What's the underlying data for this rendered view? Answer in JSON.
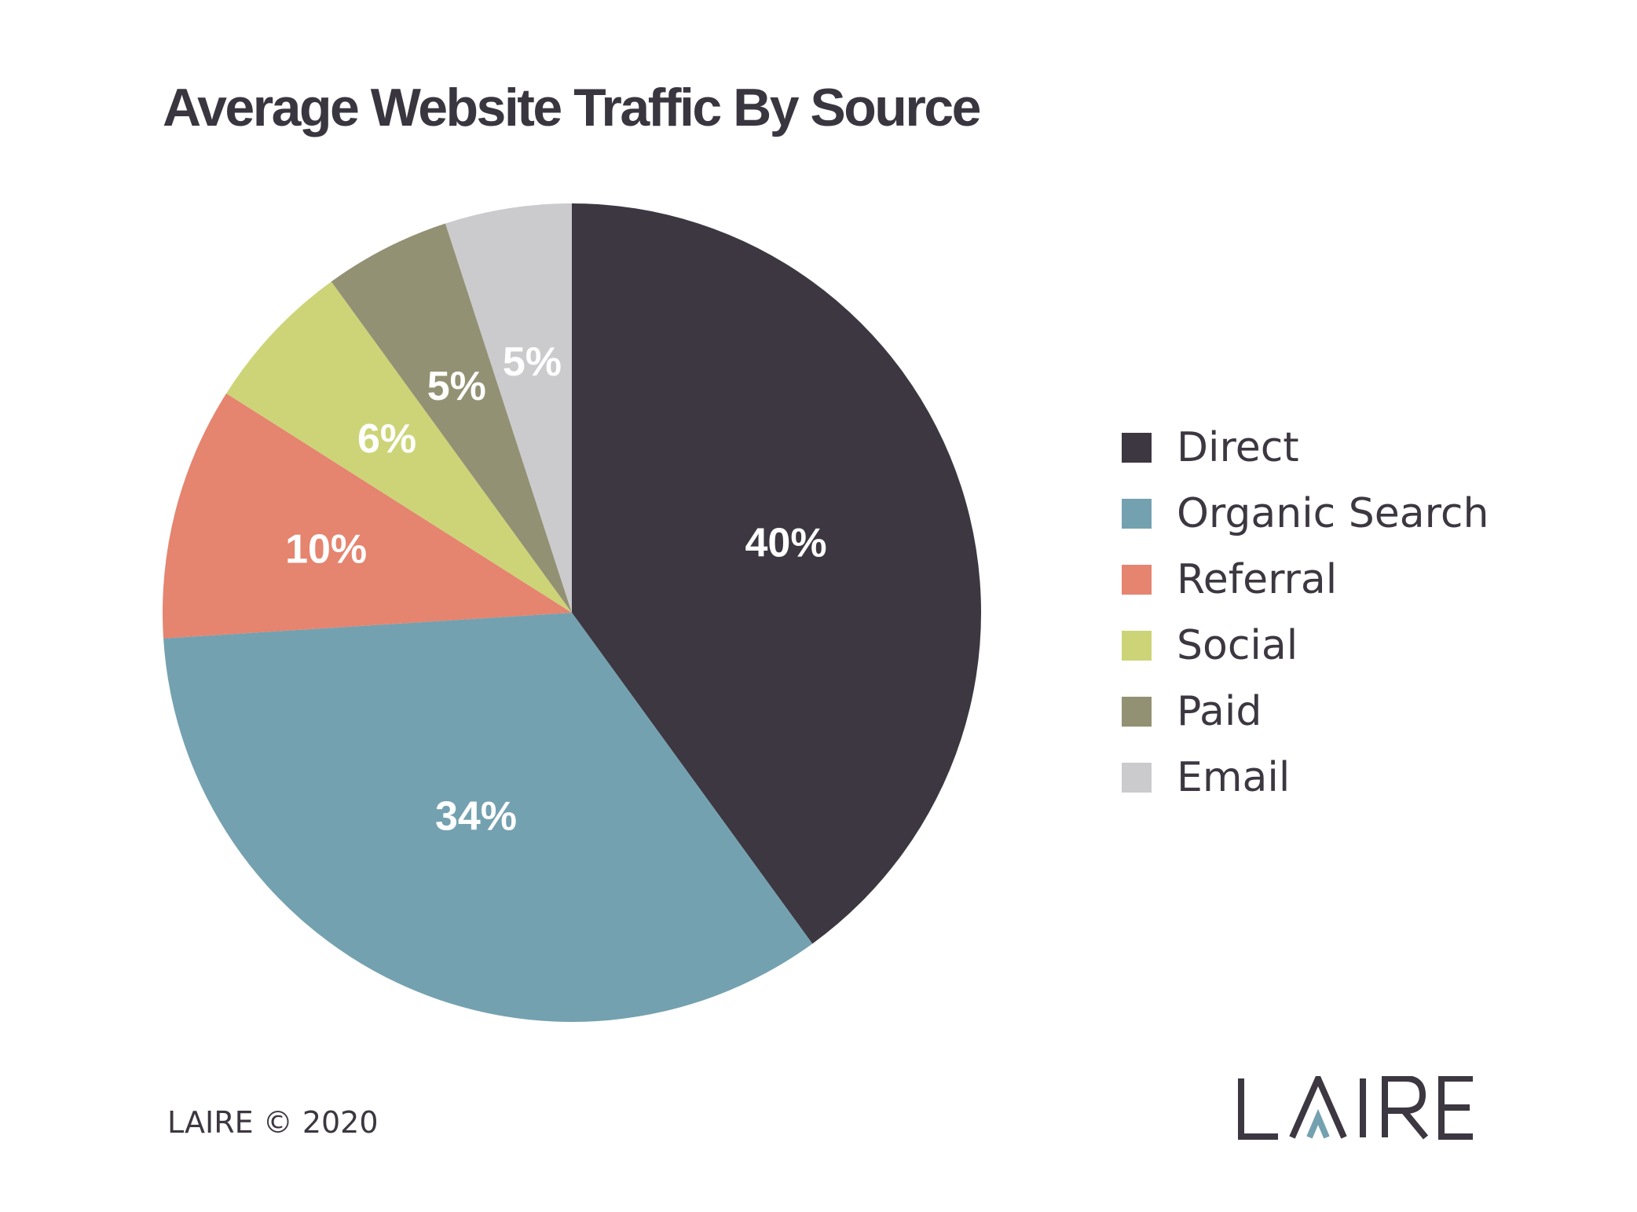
{
  "chart_data": {
    "type": "pie",
    "title": "Average Website Traffic By Source",
    "start": "12 o'clock",
    "direction": "clockwise",
    "legend_position": "right",
    "slices": [
      {
        "label": "Direct",
        "value": 40,
        "display": "40%",
        "color": "#3c3740"
      },
      {
        "label": "Organic Search",
        "value": 34,
        "display": "34%",
        "color": "#74a1b0"
      },
      {
        "label": "Referral",
        "value": 10,
        "display": "10%",
        "color": "#e5846f"
      },
      {
        "label": "Social",
        "value": 6,
        "display": "6%",
        "color": "#cdd478"
      },
      {
        "label": "Paid",
        "value": 5,
        "display": "5%",
        "color": "#939173"
      },
      {
        "label": "Email",
        "value": 5,
        "display": "5%",
        "color": "#cbcbce"
      }
    ]
  },
  "footer": {
    "copyright": "LAIRE © 2020"
  },
  "logo": {
    "text": "LAIRE",
    "colors": {
      "letters": "#3c3740",
      "accent": "#74a1b0"
    }
  }
}
